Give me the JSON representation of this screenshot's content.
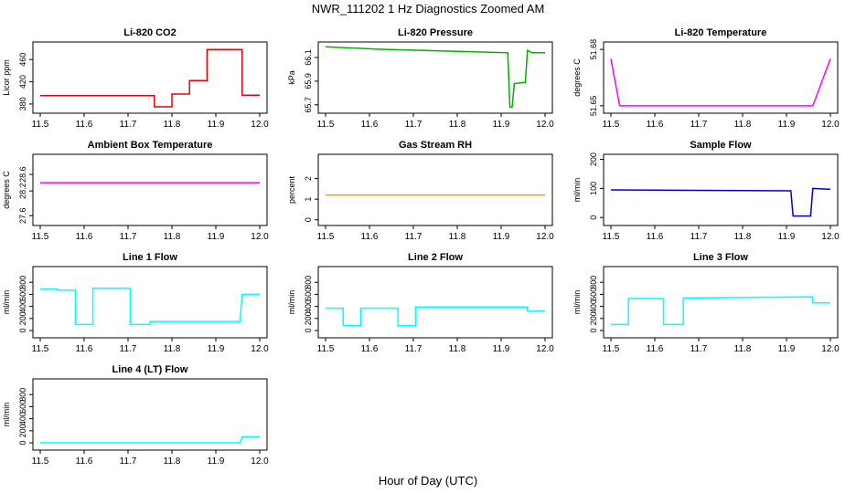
{
  "figure": {
    "title": "NWR_111202  1 Hz Diagnostics Zoomed AM",
    "xlabel": "Hour of Day (UTC)"
  },
  "chart_data": [
    {
      "type": "line",
      "title": "Li-820 CO2",
      "ylabel": "Licor ppm",
      "color": "#e8000b",
      "xlim": [
        11.5,
        12.0
      ],
      "ylim": [
        370,
        485
      ],
      "yticks": [
        380,
        420,
        460
      ],
      "xticks": [
        11.5,
        11.6,
        11.7,
        11.8,
        11.9,
        12.0
      ],
      "series": [
        {
          "x": [
            11.5,
            11.76,
            11.76,
            11.8,
            11.8,
            11.84,
            11.84,
            11.88,
            11.88,
            11.96,
            11.96,
            12.0
          ],
          "y": [
            395,
            395,
            375,
            375,
            398,
            398,
            422,
            422,
            478,
            478,
            396,
            396
          ]
        }
      ]
    },
    {
      "type": "line",
      "title": "Li-820 Pressure",
      "ylabel": "kPa",
      "color": "#00b000",
      "xlim": [
        11.5,
        12.0
      ],
      "ylim": [
        65.66,
        66.2
      ],
      "yticks": [
        65.7,
        65.9,
        66.1
      ],
      "xticks": [
        11.5,
        11.6,
        11.7,
        11.8,
        11.9,
        12.0
      ],
      "series": [
        {
          "x": [
            11.5,
            11.62,
            11.82,
            11.915,
            11.92,
            11.925,
            11.93,
            11.955,
            11.96,
            11.97,
            12.0
          ],
          "y": [
            66.19,
            66.17,
            66.15,
            66.14,
            65.68,
            65.68,
            65.88,
            65.89,
            66.16,
            66.14,
            66.14
          ]
        }
      ]
    },
    {
      "type": "line",
      "title": "Li-820 Temperature",
      "ylabel": "degrees C",
      "color": "#ff00ff",
      "xlim": [
        11.5,
        12.0
      ],
      "ylim": [
        51.648,
        51.682
      ],
      "yticks": [
        51.65,
        51.68
      ],
      "xticks": [
        11.5,
        11.6,
        11.7,
        11.8,
        11.9,
        12.0
      ],
      "series": [
        {
          "x": [
            11.5,
            11.52,
            11.595,
            11.675,
            11.8,
            11.91,
            11.96,
            12.0
          ],
          "y": [
            51.675,
            51.65,
            51.65,
            51.65,
            51.65,
            51.65,
            51.65,
            51.675
          ]
        }
      ]
    },
    {
      "type": "line",
      "title": "Ambient Box Temperature",
      "ylabel": "degrees C",
      "color": "#ff00ff",
      "xlim": [
        11.5,
        12.0
      ],
      "ylim": [
        27.45,
        29.0
      ],
      "yticks": [
        27.6,
        28.2,
        28.6
      ],
      "xticks": [
        11.5,
        11.6,
        11.7,
        11.8,
        11.9,
        12.0
      ],
      "series": [
        {
          "x": [
            11.5,
            12.0
          ],
          "y": [
            28.4,
            28.4
          ]
        }
      ]
    },
    {
      "type": "line",
      "title": "Gas Stream RH",
      "ylabel": "percent",
      "color": "#ff9900",
      "xlim": [
        11.5,
        12.0
      ],
      "ylim": [
        -0.1,
        3.0
      ],
      "yticks": [
        0.0,
        1.0,
        2.0
      ],
      "xticks": [
        11.5,
        11.6,
        11.7,
        11.8,
        11.9,
        12.0
      ],
      "series": [
        {
          "x": [
            11.5,
            12.0
          ],
          "y": [
            1.2,
            1.2
          ]
        }
      ]
    },
    {
      "type": "line",
      "title": "Sample Flow",
      "ylabel": "ml/min",
      "color": "#0000cd",
      "xlim": [
        11.5,
        12.0
      ],
      "ylim": [
        -15,
        205
      ],
      "yticks": [
        0,
        100,
        200
      ],
      "xticks": [
        11.5,
        11.6,
        11.7,
        11.8,
        11.9,
        12.0
      ],
      "series": [
        {
          "x": [
            11.5,
            11.91,
            11.915,
            11.955,
            11.96,
            12.0
          ],
          "y": [
            95,
            92,
            5,
            5,
            100,
            97
          ]
        }
      ]
    },
    {
      "type": "line",
      "title": "Line 1 Flow",
      "ylabel": "ml/min",
      "color": "#00ffff",
      "xlim": [
        11.5,
        12.0
      ],
      "ylim": [
        -60,
        1000
      ],
      "yticks": [
        0,
        200,
        400,
        600,
        800
      ],
      "xticks": [
        11.5,
        11.6,
        11.7,
        11.8,
        11.9,
        12.0
      ],
      "series": [
        {
          "x": [
            11.5,
            11.54,
            11.54,
            11.58,
            11.58,
            11.62,
            11.62,
            11.705,
            11.705,
            11.75,
            11.75,
            11.955,
            11.96,
            12.0
          ],
          "y": [
            690,
            690,
            670,
            670,
            100,
            100,
            700,
            700,
            100,
            100,
            150,
            150,
            600,
            600
          ]
        }
      ]
    },
    {
      "type": "line",
      "title": "Line 2 Flow",
      "ylabel": "ml/min",
      "color": "#00ffff",
      "xlim": [
        11.5,
        12.0
      ],
      "ylim": [
        -60,
        1000
      ],
      "yticks": [
        0,
        200,
        400,
        600,
        800
      ],
      "xticks": [
        11.5,
        11.6,
        11.7,
        11.8,
        11.9,
        12.0
      ],
      "series": [
        {
          "x": [
            11.5,
            11.54,
            11.54,
            11.58,
            11.58,
            11.665,
            11.665,
            11.705,
            11.705,
            11.96,
            11.96,
            12.0
          ],
          "y": [
            370,
            370,
            80,
            80,
            370,
            370,
            80,
            80,
            390,
            390,
            320,
            320
          ]
        }
      ]
    },
    {
      "type": "line",
      "title": "Line 3 Flow",
      "ylabel": "ml/min",
      "color": "#00ffff",
      "xlim": [
        11.5,
        12.0
      ],
      "ylim": [
        -60,
        1000
      ],
      "yticks": [
        0,
        200,
        400,
        600,
        800
      ],
      "xticks": [
        11.5,
        11.6,
        11.7,
        11.8,
        11.9,
        12.0
      ],
      "series": [
        {
          "x": [
            11.5,
            11.54,
            11.54,
            11.62,
            11.62,
            11.665,
            11.665,
            11.96,
            11.96,
            12.0
          ],
          "y": [
            100,
            100,
            530,
            530,
            100,
            100,
            540,
            560,
            460,
            460
          ]
        }
      ]
    },
    {
      "type": "line",
      "title": "Line 4 (LT) Flow",
      "ylabel": "ml/min",
      "color": "#00ffff",
      "xlim": [
        11.5,
        12.0
      ],
      "ylim": [
        -60,
        1000
      ],
      "yticks": [
        0,
        200,
        400,
        600,
        800
      ],
      "xticks": [
        11.5,
        11.6,
        11.7,
        11.8,
        11.9,
        12.0
      ],
      "series": [
        {
          "x": [
            11.5,
            11.955,
            11.96,
            12.0
          ],
          "y": [
            0,
            0,
            100,
            100
          ]
        }
      ]
    }
  ]
}
